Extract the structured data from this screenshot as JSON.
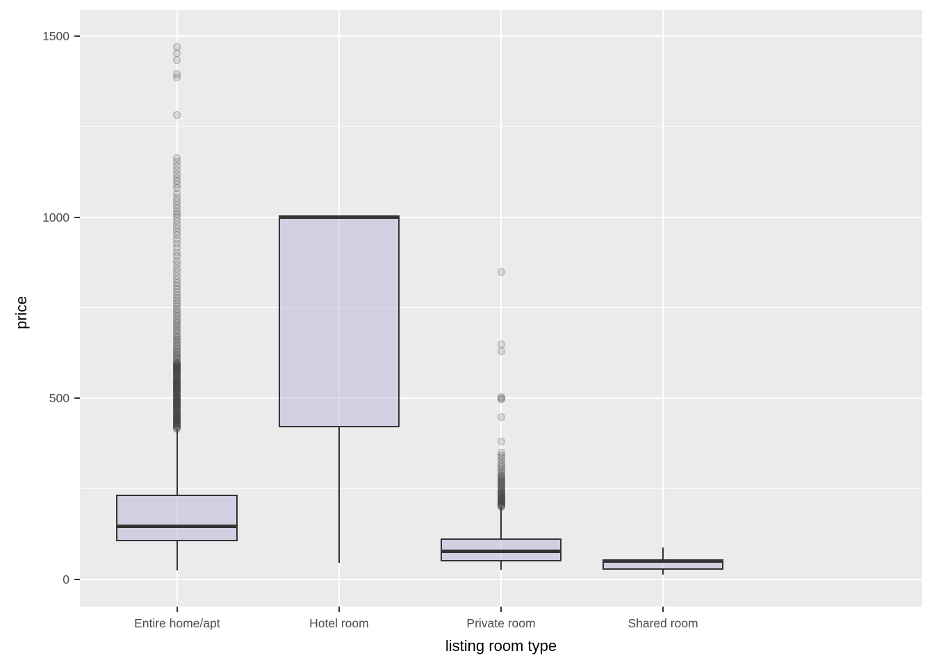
{
  "chart_data": {
    "type": "boxplot",
    "title": "",
    "xlabel": "listing room type",
    "ylabel": "price",
    "categories": [
      "Entire home/apt",
      "Hotel room",
      "Private room",
      "Shared room"
    ],
    "y_ticks": [
      0,
      500,
      1000,
      1500
    ],
    "y_tick_labels": [
      "0",
      "500",
      "1000",
      "1500"
    ],
    "y_minor_gridlines": [
      250,
      750,
      1250
    ],
    "y_domain": [
      -75,
      1573
    ],
    "grid": true,
    "legend": false,
    "series": [
      {
        "category": "Entire home/apt",
        "whisker_low": 25,
        "q1": 105,
        "median": 147,
        "q3": 233,
        "whisker_high": 415,
        "outliers": [
          416,
          418,
          420,
          422,
          424,
          426,
          428,
          430,
          432,
          434,
          436,
          438,
          440,
          442,
          444,
          446,
          448,
          450,
          452,
          454,
          456,
          458,
          460,
          462,
          464,
          466,
          468,
          470,
          472,
          474,
          476,
          478,
          480,
          482,
          484,
          486,
          488,
          490,
          492,
          494,
          496,
          498,
          500,
          502,
          504,
          506,
          508,
          510,
          512,
          514,
          516,
          518,
          520,
          522,
          524,
          526,
          528,
          530,
          532,
          534,
          536,
          538,
          540,
          542,
          544,
          546,
          548,
          550,
          552,
          554,
          556,
          558,
          560,
          562,
          564,
          566,
          568,
          570,
          572,
          574,
          576,
          578,
          580,
          582,
          584,
          586,
          588,
          590,
          592,
          594,
          596,
          598,
          600,
          604,
          608,
          613,
          617,
          621,
          625,
          629,
          634,
          638,
          643,
          648,
          653,
          658,
          663,
          668,
          673,
          679,
          685,
          691,
          697,
          703,
          709,
          715,
          721,
          727,
          734,
          741,
          748,
          755,
          762,
          770,
          778,
          786,
          794,
          802,
          810,
          819,
          828,
          838,
          848,
          858,
          869,
          880,
          892,
          903,
          915,
          927,
          939,
          950,
          960,
          970,
          980,
          990,
          1000,
          1008,
          1016,
          1025,
          1035,
          1045,
          1055,
          1065,
          1080,
          1090,
          1100,
          1110,
          1120,
          1130,
          1142,
          1154,
          1164,
          1283,
          1385,
          1395,
          1433,
          1454,
          1471
        ]
      },
      {
        "category": "Hotel room",
        "whisker_low": 45,
        "q1": 420,
        "median": 1000,
        "q3": 1000,
        "whisker_high": 1000,
        "outliers": []
      },
      {
        "category": "Private room",
        "whisker_low": 27,
        "q1": 50,
        "median": 77,
        "q3": 113,
        "whisker_high": 200,
        "outliers": [
          200,
          202,
          204,
          206,
          208,
          210,
          212,
          214,
          216,
          218,
          220,
          222,
          224,
          226,
          228,
          230,
          232,
          234,
          236,
          238,
          240,
          243,
          246,
          249,
          252,
          255,
          258,
          261,
          264,
          267,
          270,
          273,
          276,
          279,
          282,
          285,
          288,
          294,
          299,
          304,
          310,
          316,
          322,
          329,
          336,
          343,
          349,
          381,
          448,
          497,
          500,
          503,
          631,
          650,
          848
        ]
      },
      {
        "category": "Shared room",
        "whisker_low": 13,
        "q1": 26,
        "median": 50,
        "q3": 52,
        "whisker_high": 88,
        "outliers": []
      }
    ],
    "colors": {
      "panel_background": "#EBEBEB",
      "gridline": "#FFFFFF",
      "box_fill": "#B9B3DB",
      "box_fill_alpha": 0.5,
      "box_border": "#333333",
      "outlier_color": "#333333",
      "outlier_alpha": 0.15,
      "tick_label": "#4D4D4D",
      "axis_title": "#000000"
    }
  }
}
